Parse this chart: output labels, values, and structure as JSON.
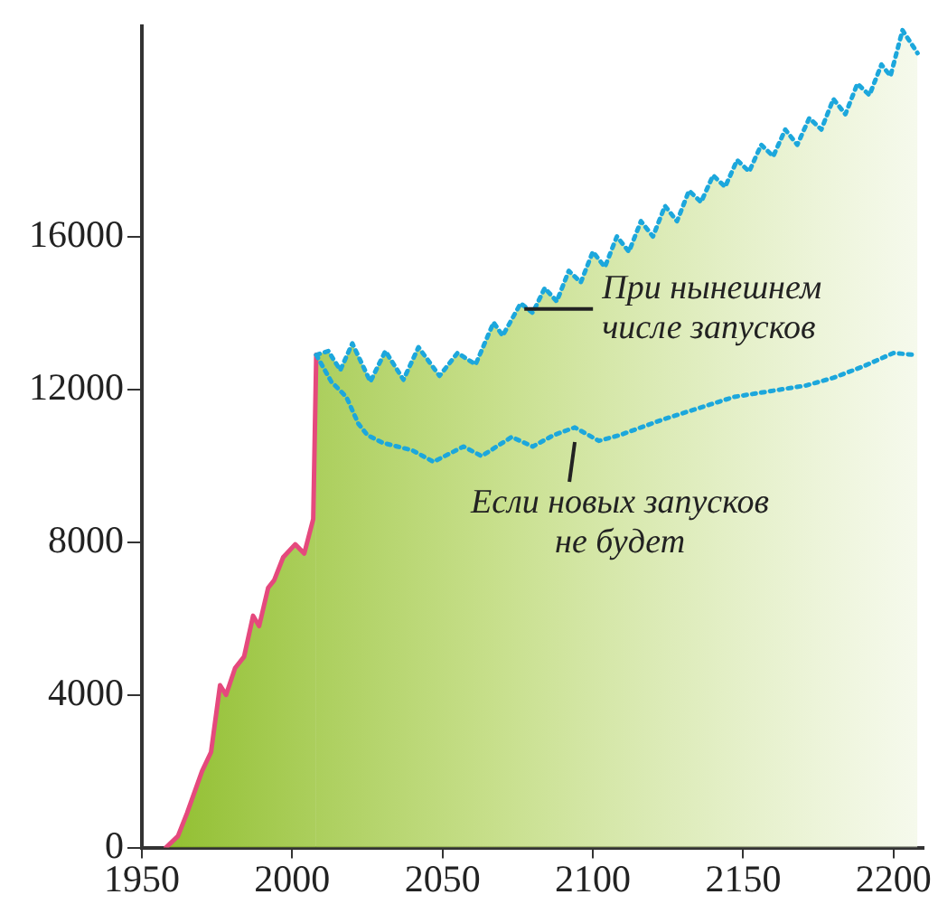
{
  "chart_data": {
    "type": "line",
    "xlim": [
      1950,
      2210
    ],
    "xticks": [
      1950,
      2000,
      2050,
      2100,
      2150,
      2200
    ],
    "ylim": [
      0,
      21500
    ],
    "yticks": [
      0,
      4000,
      8000,
      12000,
      16000
    ],
    "grid": false,
    "legend": false,
    "marker": "none",
    "series": [
      {
        "type": "area",
        "color": "#e5497d",
        "line_style": "solid",
        "x": [
          1958,
          1962,
          1965,
          1970,
          1973,
          1976,
          1978,
          1981,
          1984,
          1987,
          1989,
          1992,
          1994,
          1997,
          2001,
          2004,
          2006,
          2007,
          2008
        ],
        "values": [
          0,
          300,
          900,
          2000,
          2500,
          4250,
          4000,
          4700,
          5000,
          6070,
          5800,
          6800,
          7000,
          7600,
          7940,
          7700,
          8300,
          8600,
          12900
        ]
      },
      {
        "type": "area",
        "color": "#1ca7dc",
        "line_style": "dotted",
        "x": [
          2008,
          2012,
          2016,
          2020,
          2026,
          2031,
          2037,
          2042,
          2049,
          2055,
          2061,
          2067,
          2070,
          2076,
          2080,
          2084,
          2088,
          2092,
          2096,
          2100,
          2104,
          2108,
          2112,
          2116,
          2120,
          2124,
          2128,
          2132,
          2136,
          2140,
          2144,
          2148,
          2152,
          2156,
          2160,
          2164,
          2168,
          2172,
          2176,
          2180,
          2184,
          2188,
          2192,
          2196,
          2199,
          2203,
          2208
        ],
        "values": [
          12900,
          13000,
          12500,
          13200,
          12200,
          13000,
          12250,
          13100,
          12350,
          12950,
          12650,
          13750,
          13400,
          14250,
          14000,
          14650,
          14300,
          15100,
          14800,
          15600,
          15200,
          16000,
          15600,
          16400,
          16000,
          16800,
          16400,
          17200,
          16900,
          17600,
          17300,
          18000,
          17700,
          18400,
          18100,
          18800,
          18400,
          19100,
          18800,
          19600,
          19200,
          20000,
          19700,
          20500,
          20200,
          21400,
          20800
        ]
      },
      {
        "type": "line",
        "color": "#1ca7dc",
        "line_style": "dotted",
        "x": [
          2008,
          2013,
          2018,
          2022,
          2025,
          2030,
          2035,
          2040,
          2047,
          2052,
          2057,
          2063,
          2068,
          2073,
          2080,
          2087,
          2094,
          2102,
          2109,
          2116,
          2123,
          2131,
          2139,
          2147,
          2155,
          2163,
          2171,
          2180,
          2190,
          2200,
          2207
        ],
        "values": [
          12900,
          12200,
          11800,
          11100,
          10800,
          10600,
          10500,
          10400,
          10100,
          10300,
          10500,
          10250,
          10500,
          10750,
          10500,
          10800,
          11000,
          10650,
          10800,
          11000,
          11200,
          11400,
          11600,
          11800,
          11900,
          12000,
          12100,
          12300,
          12600,
          12950,
          12900
        ]
      }
    ],
    "annotations": [
      {
        "text": "При нынешнем\nчисле запусков",
        "x": 2076,
        "y": 14100
      },
      {
        "text": "Если новых запусков\nне будет",
        "x": 2094,
        "y": 10900
      }
    ]
  }
}
